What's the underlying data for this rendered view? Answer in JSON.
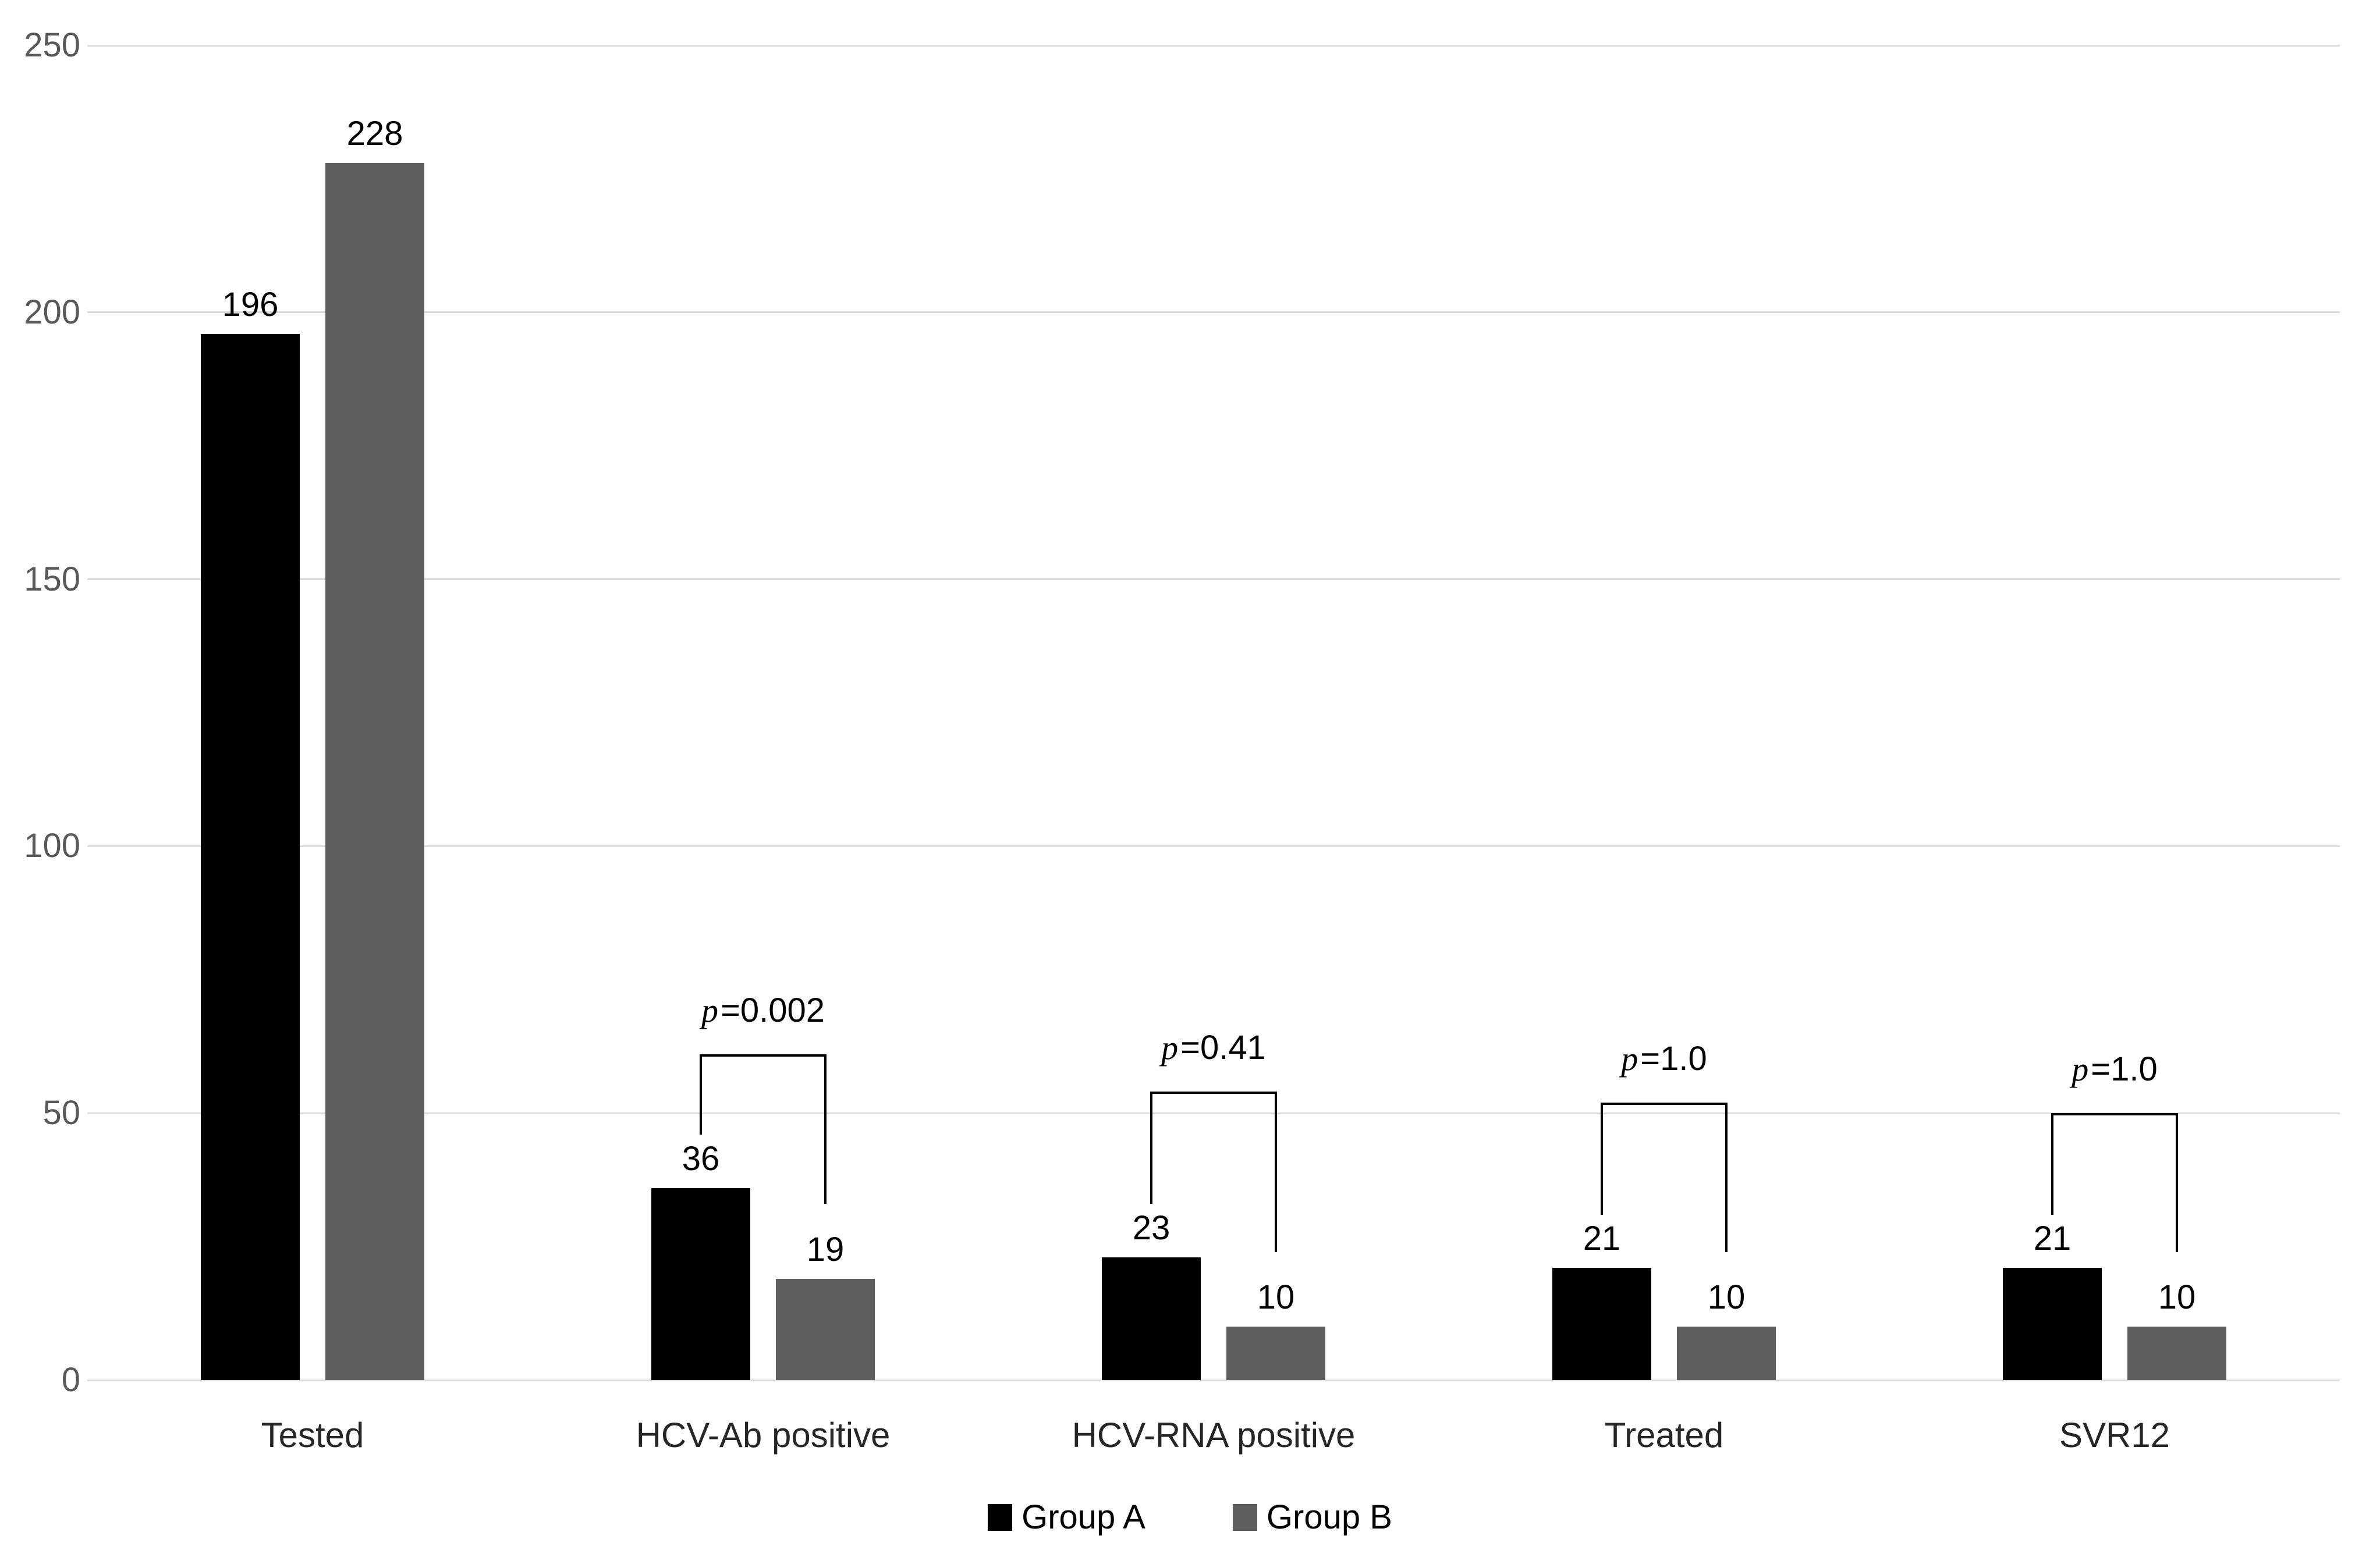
{
  "chart_data": {
    "type": "bar",
    "title": "",
    "categories": [
      "Tested",
      "HCV-Ab positive",
      "HCV-RNA positive",
      "Treated",
      "SVR12"
    ],
    "series": [
      {
        "name": "Group A",
        "color": "#000000",
        "values": [
          196,
          36,
          23,
          21,
          21
        ]
      },
      {
        "name": "Group B",
        "color": "#5f5f5f",
        "values": [
          228,
          19,
          10,
          10,
          10
        ]
      }
    ],
    "ylim": [
      0,
      250
    ],
    "yticks": [
      0,
      50,
      100,
      150,
      200,
      250
    ],
    "grid": true,
    "legend_position": "bottom",
    "colors": {
      "gridline": "#d9d9d9",
      "axis_line": "#d9d9d9",
      "y_tick_label": "#595959",
      "category_label": "#262626",
      "value_label": "#000000",
      "bracket": "#000000"
    },
    "annotations": [
      {
        "category_index": 1,
        "italic_prefix": "p",
        "text": "=0.002",
        "bracket_top": 61,
        "left_leg_bottom": 46,
        "right_leg_bottom": 33
      },
      {
        "category_index": 2,
        "italic_prefix": "p",
        "text": "=0.41",
        "bracket_top": 54,
        "left_leg_bottom": 33,
        "right_leg_bottom": 24
      },
      {
        "category_index": 3,
        "italic_prefix": "p",
        "text": "=1.0",
        "bracket_top": 52,
        "left_leg_bottom": 31,
        "right_leg_bottom": 24
      },
      {
        "category_index": 4,
        "italic_prefix": "p",
        "text": "=1.0",
        "bracket_top": 50,
        "left_leg_bottom": 31,
        "right_leg_bottom": 24
      }
    ]
  },
  "legend": {
    "items": [
      {
        "label": "Group A"
      },
      {
        "label": "Group B"
      }
    ]
  }
}
